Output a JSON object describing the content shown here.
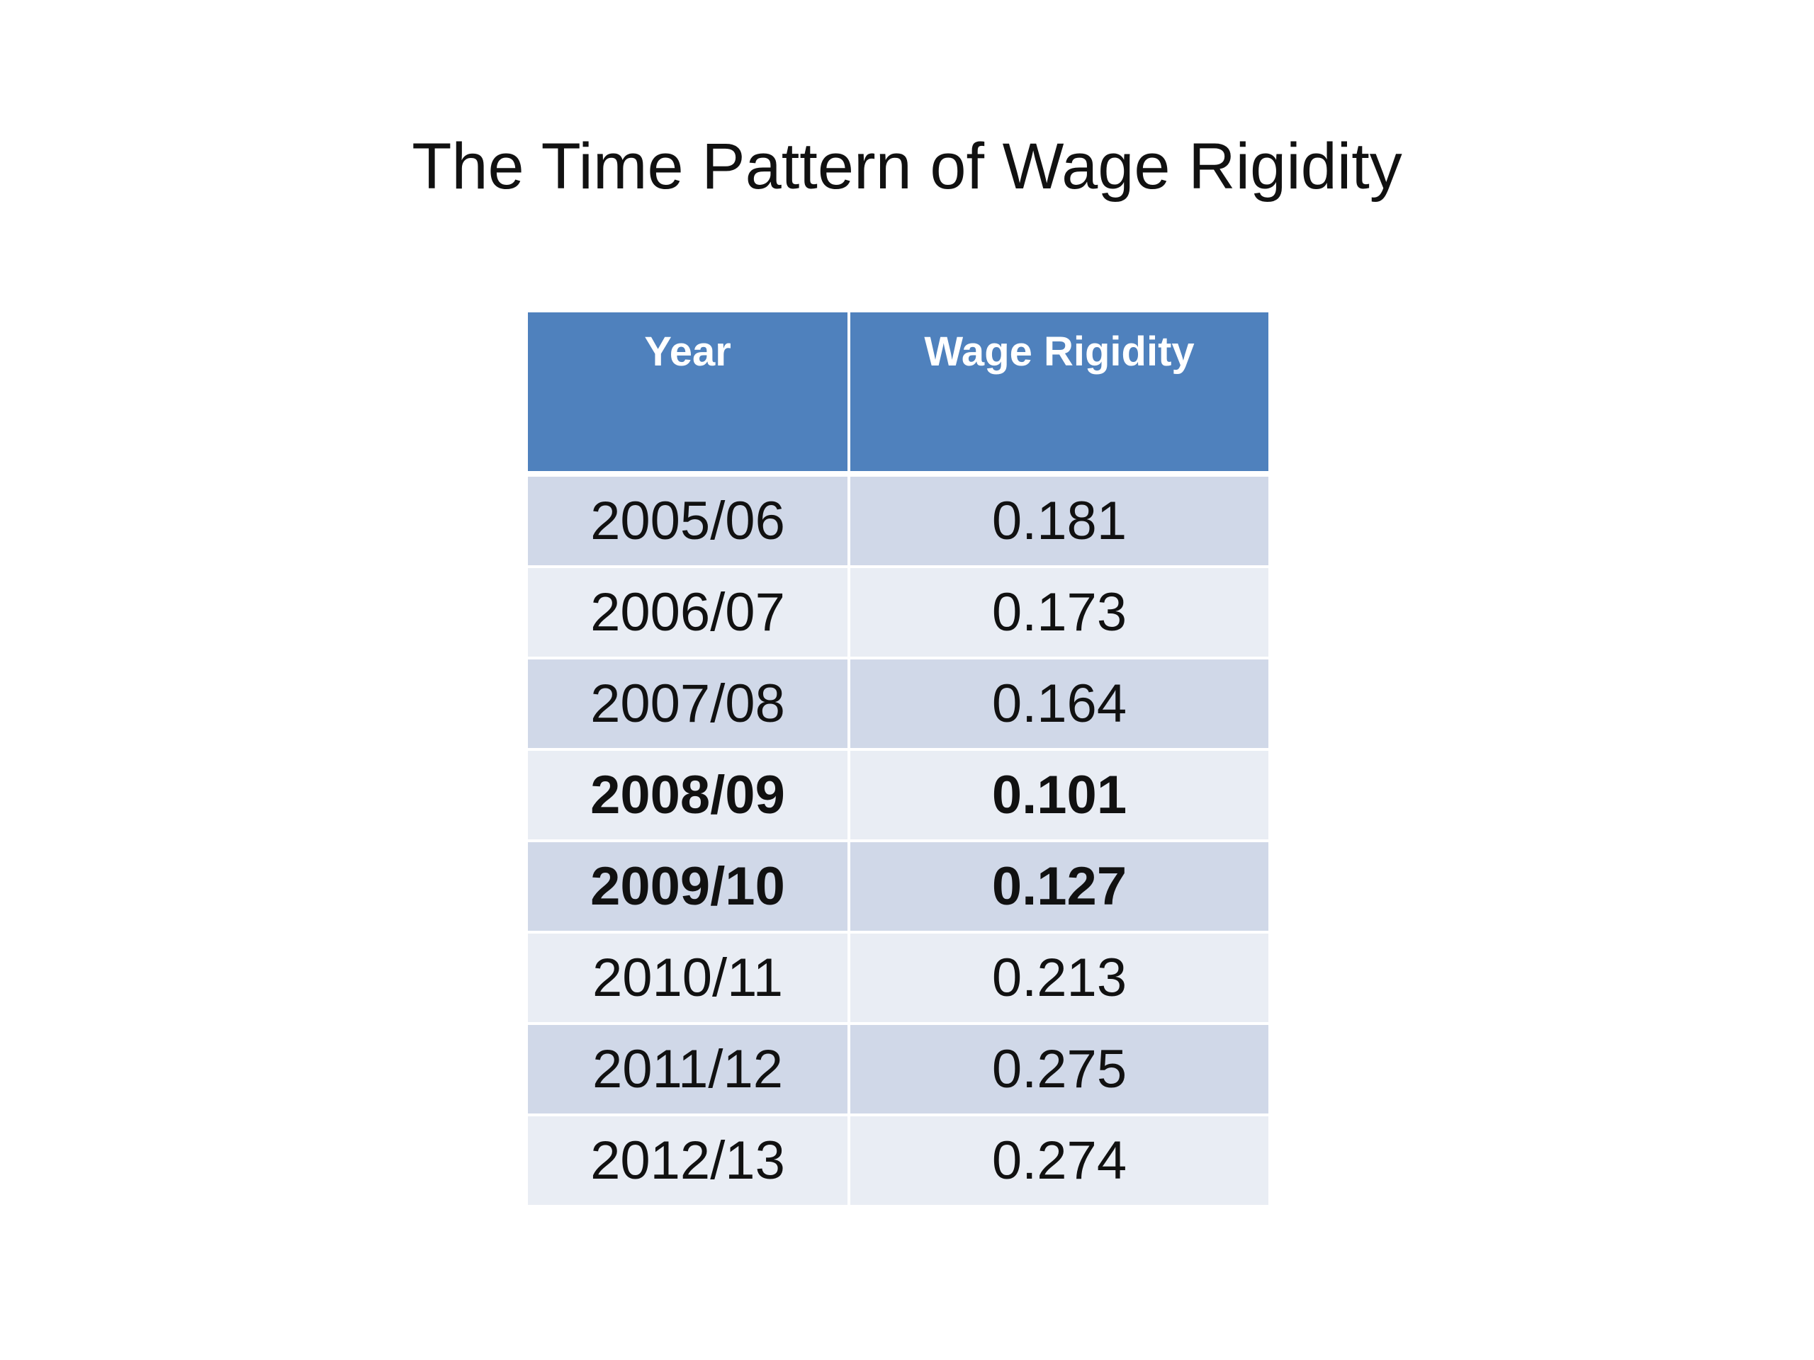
{
  "title": "The Time Pattern of Wage Rigidity",
  "table": {
    "headers": [
      "Year",
      "Wage Rigidity"
    ],
    "rows": [
      {
        "year": "2005/06",
        "value": "0.181",
        "bold": false
      },
      {
        "year": "2006/07",
        "value": "0.173",
        "bold": false
      },
      {
        "year": "2007/08",
        "value": "0.164",
        "bold": false
      },
      {
        "year": "2008/09",
        "value": "0.101",
        "bold": true
      },
      {
        "year": "2009/10",
        "value": "0.127",
        "bold": true
      },
      {
        "year": "2010/11",
        "value": "0.213",
        "bold": false
      },
      {
        "year": "2011/12",
        "value": "0.275",
        "bold": false
      },
      {
        "year": "2012/13",
        "value": "0.274",
        "bold": false
      }
    ]
  },
  "colors": {
    "header_bg": "#4f81bd",
    "row_band_dark": "#d0d8e8",
    "row_band_light": "#e9edf4"
  }
}
